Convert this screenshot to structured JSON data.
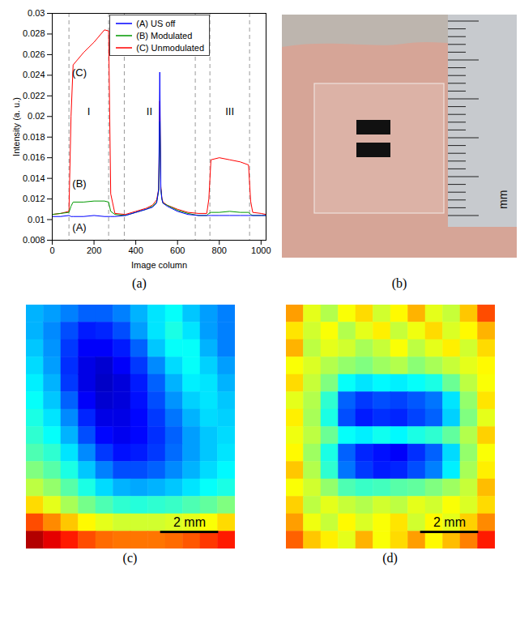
{
  "chart_data": [
    {
      "type": "line",
      "panel": "(a)",
      "x_label": "Image column",
      "y_label": "Intensity (a. u.)",
      "x": [
        0,
        40,
        80,
        90,
        100,
        150,
        200,
        250,
        270,
        280,
        300,
        350,
        400,
        450,
        480,
        500,
        510,
        515,
        520,
        525,
        530,
        550,
        600,
        650,
        700,
        740,
        750,
        760,
        800,
        850,
        900,
        940,
        950,
        960,
        1000,
        1024
      ],
      "series": [
        {
          "name": "(A) US off",
          "color": "#0000ff",
          "values": [
            0.0103,
            0.0103,
            0.0104,
            0.0103,
            0.0103,
            0.0103,
            0.0104,
            0.0103,
            0.0103,
            0.0103,
            0.0103,
            0.0104,
            0.0107,
            0.011,
            0.0112,
            0.0116,
            0.013,
            0.0243,
            0.013,
            0.012,
            0.0116,
            0.0113,
            0.0108,
            0.0105,
            0.0104,
            0.0104,
            0.0104,
            0.0104,
            0.0104,
            0.0104,
            0.0104,
            0.0104,
            0.0104,
            0.0104,
            0.0104,
            0.0104
          ]
        },
        {
          "name": "(B) Modulated",
          "color": "#009900",
          "values": [
            0.0105,
            0.0106,
            0.0107,
            0.0113,
            0.0117,
            0.0117,
            0.0118,
            0.0118,
            0.0117,
            0.0108,
            0.0105,
            0.0104,
            0.0107,
            0.011,
            0.0113,
            0.0117,
            0.0128,
            0.0195,
            0.013,
            0.012,
            0.0116,
            0.0114,
            0.0109,
            0.0106,
            0.0104,
            0.0104,
            0.0106,
            0.0107,
            0.0107,
            0.0108,
            0.0107,
            0.0107,
            0.0105,
            0.0104,
            0.0104,
            0.0104
          ]
        },
        {
          "name": "(C) Unmodulated",
          "color": "#ff0000",
          "values": [
            0.0105,
            0.0106,
            0.0108,
            0.02,
            0.025,
            0.0262,
            0.0272,
            0.0284,
            0.0283,
            0.0125,
            0.0106,
            0.0105,
            0.0108,
            0.0111,
            0.0114,
            0.0119,
            0.013,
            0.0215,
            0.0132,
            0.0121,
            0.0117,
            0.0114,
            0.011,
            0.0107,
            0.0106,
            0.0106,
            0.012,
            0.0158,
            0.016,
            0.0158,
            0.0156,
            0.0153,
            0.0118,
            0.0107,
            0.0106,
            0.0105
          ]
        }
      ],
      "xlim": [
        0,
        1024
      ],
      "xticks": [
        0,
        200,
        400,
        600,
        800,
        1000
      ],
      "ylim": [
        0.008,
        0.03
      ],
      "yticks": [
        0.008,
        0.01,
        0.012,
        0.014,
        0.016,
        0.018,
        0.02,
        0.022,
        0.024,
        0.026,
        0.028,
        0.03
      ],
      "grid": false,
      "legend": "top",
      "vlines": [
        80,
        270,
        345,
        685,
        755,
        945
      ],
      "annotations": [
        {
          "text": "(C)",
          "x": 130,
          "y": 0.0242
        },
        {
          "text": "I",
          "x": 175,
          "y": 0.0205
        },
        {
          "text": "II",
          "x": 465,
          "y": 0.0205
        },
        {
          "text": "III",
          "x": 850,
          "y": 0.0205
        },
        {
          "text": "(B)",
          "x": 130,
          "y": 0.0135
        },
        {
          "text": "(A)",
          "x": 130,
          "y": 0.0092
        }
      ]
    },
    {
      "type": "heatmap",
      "panel": "(c)",
      "xlim": [
        0,
        7.2
      ],
      "ylim": [
        0,
        8.4
      ],
      "tick_labels": false,
      "color_range": [
        0,
        1
      ],
      "scale_bar": {
        "length": 2,
        "label": "2 mm"
      },
      "cells": [
        [
          0.3,
          0.28,
          0.25,
          0.22,
          0.22,
          0.25,
          0.3,
          0.35,
          0.38,
          0.32,
          0.28,
          0.25
        ],
        [
          0.3,
          0.26,
          0.2,
          0.15,
          0.16,
          0.2,
          0.28,
          0.35,
          0.4,
          0.35,
          0.28,
          0.25
        ],
        [
          0.32,
          0.27,
          0.18,
          0.12,
          0.12,
          0.15,
          0.22,
          0.32,
          0.38,
          0.38,
          0.3,
          0.25
        ],
        [
          0.34,
          0.28,
          0.17,
          0.1,
          0.08,
          0.12,
          0.18,
          0.26,
          0.34,
          0.38,
          0.33,
          0.28
        ],
        [
          0.36,
          0.3,
          0.18,
          0.1,
          0.07,
          0.09,
          0.15,
          0.22,
          0.3,
          0.36,
          0.35,
          0.3
        ],
        [
          0.38,
          0.32,
          0.22,
          0.12,
          0.08,
          0.09,
          0.14,
          0.2,
          0.27,
          0.33,
          0.35,
          0.32
        ],
        [
          0.4,
          0.35,
          0.26,
          0.16,
          0.1,
          0.1,
          0.13,
          0.18,
          0.24,
          0.3,
          0.34,
          0.33
        ],
        [
          0.42,
          0.38,
          0.3,
          0.2,
          0.13,
          0.11,
          0.13,
          0.17,
          0.22,
          0.28,
          0.32,
          0.34
        ],
        [
          0.45,
          0.42,
          0.35,
          0.26,
          0.18,
          0.14,
          0.15,
          0.18,
          0.23,
          0.28,
          0.32,
          0.35
        ],
        [
          0.5,
          0.46,
          0.4,
          0.32,
          0.25,
          0.2,
          0.2,
          0.22,
          0.26,
          0.3,
          0.34,
          0.37
        ],
        [
          0.56,
          0.52,
          0.46,
          0.4,
          0.34,
          0.3,
          0.29,
          0.3,
          0.32,
          0.35,
          0.38,
          0.4
        ],
        [
          0.66,
          0.6,
          0.54,
          0.49,
          0.45,
          0.42,
          0.41,
          0.42,
          0.43,
          0.45,
          0.47,
          0.5
        ],
        [
          0.8,
          0.74,
          0.68,
          0.63,
          0.6,
          0.58,
          0.58,
          0.58,
          0.59,
          0.6,
          0.62,
          0.66
        ],
        [
          0.95,
          0.9,
          0.85,
          0.8,
          0.77,
          0.76,
          0.76,
          0.76,
          0.77,
          0.79,
          0.82,
          0.85
        ]
      ]
    },
    {
      "type": "heatmap",
      "panel": "(d)",
      "xlim": [
        0,
        7.2
      ],
      "ylim": [
        0,
        8.4
      ],
      "tick_labels": false,
      "color_range": [
        0,
        1
      ],
      "scale_bar": {
        "length": 2,
        "label": "2 mm"
      },
      "cells": [
        [
          0.72,
          0.6,
          0.55,
          0.62,
          0.66,
          0.58,
          0.63,
          0.7,
          0.6,
          0.57,
          0.68,
          0.8
        ],
        [
          0.65,
          0.58,
          0.62,
          0.55,
          0.6,
          0.64,
          0.57,
          0.61,
          0.66,
          0.59,
          0.63,
          0.7
        ],
        [
          0.7,
          0.56,
          0.6,
          0.58,
          0.54,
          0.57,
          0.62,
          0.56,
          0.6,
          0.64,
          0.58,
          0.66
        ],
        [
          0.62,
          0.59,
          0.55,
          0.52,
          0.5,
          0.53,
          0.55,
          0.51,
          0.54,
          0.57,
          0.6,
          0.63
        ],
        [
          0.66,
          0.57,
          0.5,
          0.38,
          0.35,
          0.37,
          0.36,
          0.38,
          0.4,
          0.48,
          0.56,
          0.62
        ],
        [
          0.6,
          0.55,
          0.42,
          0.22,
          0.18,
          0.2,
          0.19,
          0.21,
          0.24,
          0.35,
          0.52,
          0.65
        ],
        [
          0.64,
          0.54,
          0.4,
          0.2,
          0.15,
          0.17,
          0.16,
          0.19,
          0.22,
          0.33,
          0.5,
          0.6
        ],
        [
          0.61,
          0.56,
          0.48,
          0.38,
          0.36,
          0.39,
          0.37,
          0.4,
          0.42,
          0.47,
          0.55,
          0.67
        ],
        [
          0.63,
          0.53,
          0.4,
          0.22,
          0.16,
          0.14,
          0.12,
          0.17,
          0.22,
          0.34,
          0.52,
          0.62
        ],
        [
          0.68,
          0.55,
          0.42,
          0.24,
          0.18,
          0.15,
          0.16,
          0.2,
          0.25,
          0.36,
          0.54,
          0.64
        ],
        [
          0.62,
          0.58,
          0.52,
          0.45,
          0.43,
          0.44,
          0.46,
          0.47,
          0.5,
          0.53,
          0.57,
          0.69
        ],
        [
          0.67,
          0.56,
          0.6,
          0.57,
          0.55,
          0.58,
          0.56,
          0.6,
          0.58,
          0.62,
          0.59,
          0.66
        ],
        [
          0.72,
          0.61,
          0.57,
          0.63,
          0.59,
          0.62,
          0.65,
          0.58,
          0.63,
          0.6,
          0.67,
          0.74
        ],
        [
          0.78,
          0.68,
          0.64,
          0.6,
          0.7,
          0.62,
          0.66,
          0.72,
          0.63,
          0.69,
          0.75,
          0.85
        ]
      ]
    }
  ],
  "photo": {
    "panel": "(b)",
    "ruler_label": "mm"
  }
}
